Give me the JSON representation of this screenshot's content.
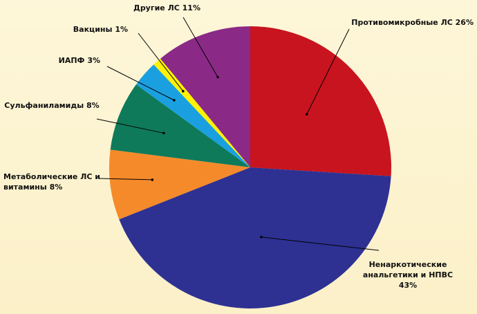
{
  "chart_data": {
    "type": "pie",
    "categories": [
      "Противомикробные ЛС",
      "Ненаркотические анальгетики и НПВС",
      "Метаболические ЛС и витамины",
      "Сульфаниламиды",
      "ИАПФ",
      "Вакцины",
      "Другие ЛС"
    ],
    "values": [
      26,
      43,
      8,
      8,
      3,
      1,
      11
    ],
    "value_labels": [
      "26%",
      "43%",
      "8%",
      "8%",
      "3%",
      "1%",
      "11%"
    ],
    "colors": [
      "#c8141e",
      "#2e3192",
      "#f58a2a",
      "#0e7a5a",
      "#1aa0e0",
      "#fff200",
      "#8b2a86"
    ]
  }
}
